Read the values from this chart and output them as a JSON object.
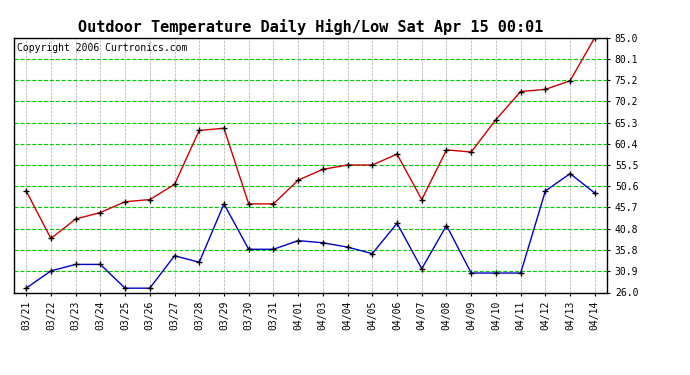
{
  "title": "Outdoor Temperature Daily High/Low Sat Apr 15 00:01",
  "copyright": "Copyright 2006 Curtronics.com",
  "x_labels": [
    "03/21",
    "03/22",
    "03/23",
    "03/24",
    "03/25",
    "03/26",
    "03/27",
    "03/28",
    "03/29",
    "03/30",
    "03/31",
    "04/01",
    "04/03",
    "04/04",
    "04/05",
    "04/06",
    "04/07",
    "04/08",
    "04/09",
    "04/10",
    "04/11",
    "04/12",
    "04/13",
    "04/14"
  ],
  "high_temps": [
    49.5,
    38.5,
    43.0,
    44.5,
    47.0,
    47.5,
    51.0,
    63.5,
    64.0,
    46.5,
    46.5,
    52.0,
    54.5,
    55.5,
    55.5,
    58.0,
    47.5,
    59.0,
    58.5,
    66.0,
    72.5,
    73.0,
    75.0,
    85.0
  ],
  "low_temps": [
    27.0,
    31.0,
    32.5,
    32.5,
    27.0,
    27.0,
    34.5,
    33.0,
    46.5,
    36.0,
    36.0,
    38.0,
    37.5,
    36.5,
    35.0,
    42.0,
    31.5,
    41.5,
    30.5,
    30.5,
    30.5,
    49.5,
    53.5,
    49.0
  ],
  "high_color": "#cc0000",
  "low_color": "#0000cc",
  "marker_color": "#000000",
  "bg_color": "#ffffff",
  "grid_h_color": "#00cc00",
  "grid_v_color": "#aaaaaa",
  "y_ticks": [
    26.0,
    30.9,
    35.8,
    40.8,
    45.7,
    50.6,
    55.5,
    60.4,
    65.3,
    70.2,
    75.2,
    80.1,
    85.0
  ],
  "y_min": 26.0,
  "y_max": 85.0,
  "title_fontsize": 11,
  "tick_fontsize": 7,
  "copyright_fontsize": 7
}
